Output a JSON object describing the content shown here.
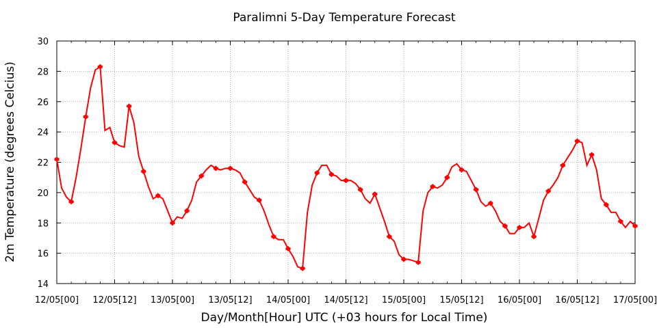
{
  "chart_data": {
    "type": "line",
    "title": "Paralimni 5-Day Temperature Forecast",
    "xlabel": "Day/Month[Hour] UTC (+03 hours for Local Time)",
    "ylabel": "2m Temperature (degrees Celcius)",
    "ylim": [
      14,
      30
    ],
    "y_ticks": [
      14,
      16,
      18,
      20,
      22,
      24,
      26,
      28,
      30
    ],
    "x_range_hours": [
      0,
      120
    ],
    "x_ticks": [
      {
        "hours": 0,
        "label": "12/05[00]"
      },
      {
        "hours": 12,
        "label": "12/05[12]"
      },
      {
        "hours": 24,
        "label": "13/05[00]"
      },
      {
        "hours": 36,
        "label": "13/05[12]"
      },
      {
        "hours": 48,
        "label": "14/05[00]"
      },
      {
        "hours": 60,
        "label": "14/05[12]"
      },
      {
        "hours": 72,
        "label": "15/05[00]"
      },
      {
        "hours": 84,
        "label": "15/05[12]"
      },
      {
        "hours": 96,
        "label": "16/05[00]"
      },
      {
        "hours": 108,
        "label": "16/05[12]"
      },
      {
        "hours": 120,
        "label": "17/05[00]"
      }
    ],
    "grid": true,
    "line_color": "#ff0000",
    "series": [
      {
        "hours": [
          0,
          1,
          2,
          3,
          4,
          5,
          6,
          7,
          8,
          9,
          10,
          11,
          12,
          13,
          14,
          15,
          16,
          17,
          18,
          19,
          20,
          21,
          22,
          23,
          24,
          25,
          26,
          27,
          28,
          29,
          30,
          31,
          32,
          33,
          34,
          35,
          36,
          37,
          38,
          39,
          40,
          41,
          42,
          43,
          44,
          45,
          46,
          47,
          48,
          49,
          50,
          51,
          52,
          53,
          54,
          55,
          56,
          57,
          58,
          59,
          60,
          61,
          62,
          63,
          64,
          65,
          66,
          67,
          68,
          69,
          70,
          71,
          72,
          73,
          74,
          75,
          76,
          77,
          78,
          79,
          80,
          81,
          82,
          83,
          84,
          85,
          86,
          87,
          88,
          89,
          90,
          91,
          92,
          93,
          94,
          95,
          96,
          97,
          98,
          99,
          100,
          101,
          102,
          103,
          104,
          105,
          106,
          107,
          108,
          109,
          110,
          111,
          112,
          113,
          114,
          115,
          116,
          117,
          118,
          119,
          120
        ],
        "values": [
          22.2,
          20.3,
          19.7,
          19.4,
          21.0,
          22.9,
          25.0,
          26.9,
          28.1,
          28.3,
          24.1,
          24.3,
          23.3,
          23.1,
          23.0,
          25.7,
          24.6,
          22.4,
          21.4,
          20.4,
          19.6,
          19.8,
          19.6,
          18.8,
          18.0,
          18.4,
          18.3,
          18.8,
          19.5,
          20.7,
          21.1,
          21.5,
          21.8,
          21.6,
          21.5,
          21.6,
          21.6,
          21.5,
          21.3,
          20.7,
          20.2,
          19.7,
          19.5,
          18.8,
          17.9,
          17.1,
          16.9,
          16.9,
          16.3,
          15.8,
          15.1,
          15.0,
          18.7,
          20.5,
          21.3,
          21.8,
          21.8,
          21.2,
          21.1,
          20.8,
          20.8,
          20.8,
          20.6,
          20.2,
          19.6,
          19.3,
          19.9,
          19.0,
          18.1,
          17.1,
          16.8,
          15.9,
          15.6,
          15.6,
          15.5,
          15.4,
          18.8,
          20.0,
          20.4,
          20.3,
          20.5,
          21.0,
          21.7,
          21.9,
          21.5,
          21.4,
          20.8,
          20.2,
          19.4,
          19.1,
          19.3,
          18.8,
          18.1,
          17.8,
          17.3,
          17.3,
          17.7,
          17.7,
          18.0,
          17.1,
          18.3,
          19.5,
          20.1,
          20.5,
          21.0,
          21.8,
          22.3,
          22.8,
          23.4,
          23.3,
          21.8,
          22.5,
          21.5,
          19.6,
          19.2,
          18.7,
          18.7,
          18.1,
          17.7,
          18.1,
          17.8
        ]
      }
    ]
  }
}
